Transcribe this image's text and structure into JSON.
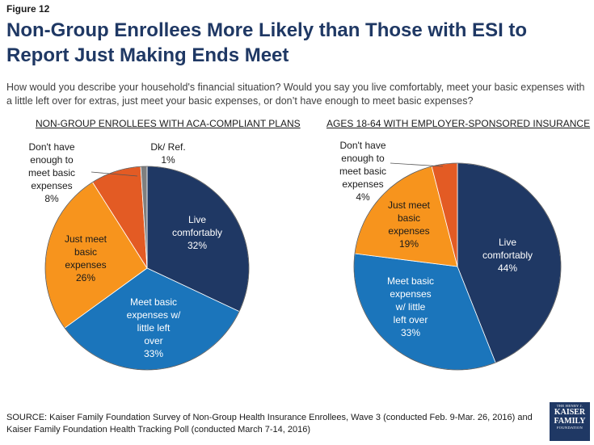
{
  "figure_label": "Figure 12",
  "title": "Non-Group Enrollees More Likely than Those with ESI to Report Just Making Ends Meet",
  "question": "How would you describe your household's financial situation?  Would you say you live comfortably, meet your basic expenses with a little left over for extras, just meet your basic expenses, or don’t have enough to meet basic expenses?",
  "source": "SOURCE: Kaiser Family Foundation Survey of Non-Group Health Insurance Enrollees, Wave 3 (conducted Feb. 9-Mar. 26, 2016) and Kaiser Family Foundation Health Tracking Poll (conducted March 7-14, 2016)",
  "logo": {
    "line1": "THE HENRY J.",
    "line2": "KAISER",
    "line3": "FAMILY",
    "line4": "FOUNDATION"
  },
  "colors": {
    "live_comfortably": "#1f3864",
    "meet_basic": "#1b75bb",
    "just_meet": "#f7941d",
    "dont_have": "#e35b24",
    "dk_ref": "#7f7f7f"
  },
  "chart_data": [
    {
      "type": "pie",
      "title": "NON-GROUP ENROLLEES WITH ACA-COMPLIANT PLANS",
      "slices": [
        {
          "key": "live_comfortably",
          "label_lines": [
            "Live",
            "comfortably",
            "32%"
          ],
          "value": 32
        },
        {
          "key": "meet_basic",
          "label_lines": [
            "Meet basic",
            "expenses w/",
            "little left",
            "over",
            "33%"
          ],
          "value": 33
        },
        {
          "key": "just_meet",
          "label_lines": [
            "Just meet",
            "basic",
            "expenses",
            "26%"
          ],
          "value": 26
        },
        {
          "key": "dont_have",
          "label_lines": [
            "Don't have",
            "enough to",
            "meet basic",
            "expenses",
            "8%"
          ],
          "value": 8
        },
        {
          "key": "dk_ref",
          "label_lines": [
            "Dk/ Ref.",
            "1%"
          ],
          "value": 1
        }
      ]
    },
    {
      "type": "pie",
      "title": "AGES 18-64 WITH EMPLOYER-SPONSORED INSURANCE",
      "slices": [
        {
          "key": "live_comfortably",
          "label_lines": [
            "Live",
            "comfortably",
            "44%"
          ],
          "value": 44
        },
        {
          "key": "meet_basic",
          "label_lines": [
            "Meet basic",
            "expenses",
            "w/ little",
            "left over",
            "33%"
          ],
          "value": 33
        },
        {
          "key": "just_meet",
          "label_lines": [
            "Just meet",
            "basic",
            "expenses",
            "19%"
          ],
          "value": 19
        },
        {
          "key": "dont_have",
          "label_lines": [
            "Don't have",
            "enough to",
            "meet basic",
            "expenses",
            "4%"
          ],
          "value": 4
        }
      ]
    }
  ]
}
